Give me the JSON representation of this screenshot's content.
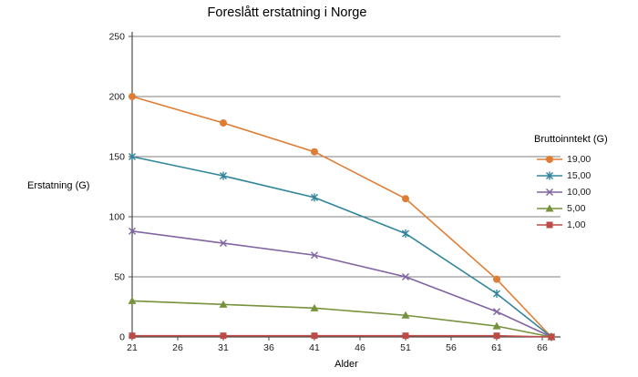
{
  "title": "Foreslått erstatning i Norge",
  "chart_data": {
    "type": "line",
    "title": "Foreslått erstatning i Norge",
    "xlabel": "Alder",
    "ylabel": "Erstatning (G)",
    "legend_title": "Bruttoinntekt (G)",
    "legend_position": "right",
    "grid": "horizontal",
    "xlim": [
      21,
      68
    ],
    "ylim": [
      0,
      250
    ],
    "x_ticks": [
      21,
      26,
      31,
      36,
      41,
      46,
      51,
      56,
      61,
      66
    ],
    "y_ticks": [
      0,
      50,
      100,
      150,
      200,
      250
    ],
    "x": [
      21,
      31,
      41,
      51,
      61,
      67
    ],
    "series": [
      {
        "name": "19,00",
        "color": "#E07D35",
        "marker": "circle",
        "values": [
          200,
          178,
          154,
          115,
          48,
          0
        ]
      },
      {
        "name": "15,00",
        "color": "#31859B",
        "marker": "asterisk",
        "values": [
          150,
          134,
          116,
          86,
          36,
          0
        ]
      },
      {
        "name": "10,00",
        "color": "#8064A2",
        "marker": "x",
        "values": [
          88,
          78,
          68,
          50,
          21,
          0
        ]
      },
      {
        "name": "5,00",
        "color": "#76923C",
        "marker": "triangle",
        "values": [
          30,
          27,
          24,
          18,
          9,
          0
        ]
      },
      {
        "name": "1,00",
        "color": "#BE4B48",
        "marker": "square",
        "values": [
          1,
          1,
          1,
          1,
          1,
          0
        ]
      }
    ]
  }
}
